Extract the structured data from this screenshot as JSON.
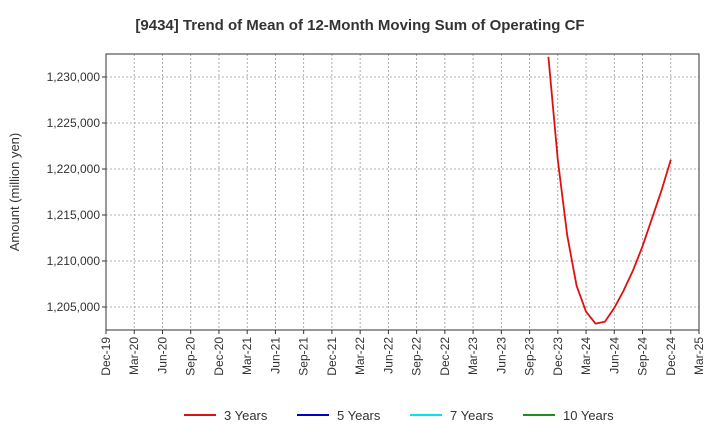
{
  "chart_data": {
    "type": "line",
    "title": "[9434]  Trend of Mean of 12-Month Moving Sum of Operating CF",
    "ylabel": "Amount (million yen)",
    "xlabel": "",
    "ylim": [
      1202500,
      1232500
    ],
    "yticks": [
      1205000,
      1210000,
      1215000,
      1220000,
      1225000,
      1230000
    ],
    "ytick_labels": [
      "1,205,000",
      "1,210,000",
      "1,215,000",
      "1,220,000",
      "1,225,000",
      "1,230,000"
    ],
    "x_categories": [
      "Dec-19",
      "Mar-20",
      "Jun-20",
      "Sep-20",
      "Dec-20",
      "Mar-21",
      "Jun-21",
      "Sep-21",
      "Dec-21",
      "Mar-22",
      "Jun-22",
      "Sep-22",
      "Dec-22",
      "Mar-23",
      "Jun-23",
      "Sep-23",
      "Dec-23",
      "Mar-24",
      "Jun-24",
      "Sep-24",
      "Dec-24",
      "Mar-25"
    ],
    "grid": true,
    "legend_position": "bottom",
    "series": [
      {
        "name": "3 Years",
        "color": "#dd1111",
        "x": [
          "Nov-23",
          "Dec-23",
          "Jan-24",
          "Feb-24",
          "Mar-24",
          "Apr-24",
          "May-24",
          "Jun-24",
          "Jul-24",
          "Aug-24",
          "Sep-24",
          "Oct-24",
          "Nov-24",
          "Dec-24"
        ],
        "values": [
          1232200,
          1221000,
          1212800,
          1207300,
          1204500,
          1203200,
          1203400,
          1204900,
          1206800,
          1209000,
          1211600,
          1214600,
          1217600,
          1221000
        ]
      },
      {
        "name": "5 Years",
        "color": "#0000cc",
        "x": [],
        "values": []
      },
      {
        "name": "7 Years",
        "color": "#00e5ee",
        "x": [],
        "values": []
      },
      {
        "name": "10 Years",
        "color": "#228b22",
        "x": [],
        "values": []
      }
    ]
  }
}
